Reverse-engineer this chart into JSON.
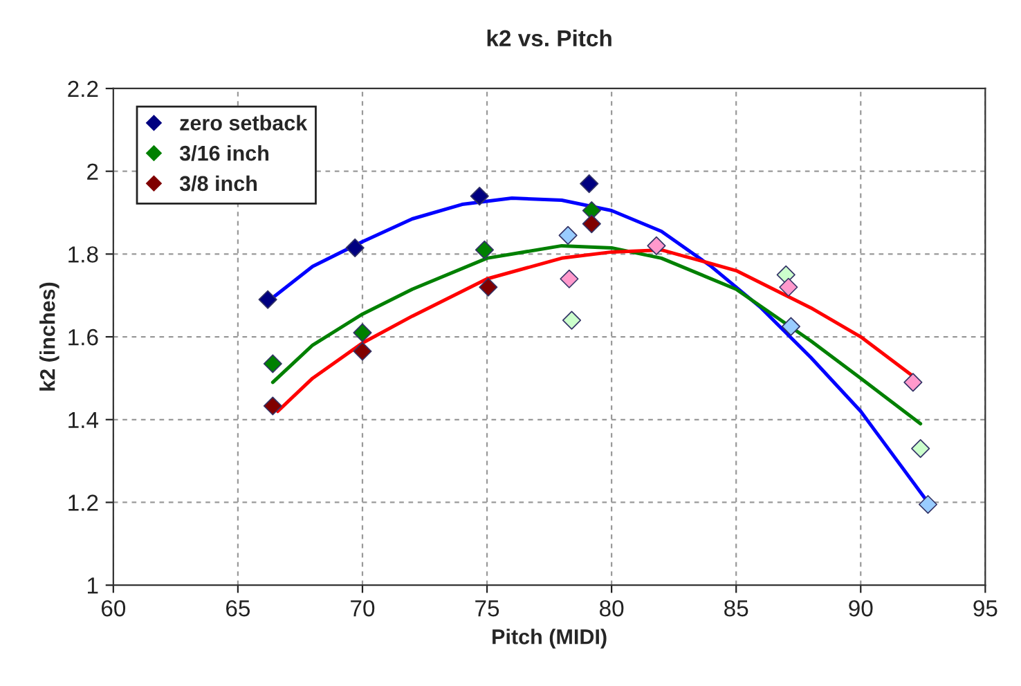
{
  "chart_data": {
    "type": "scatter",
    "title": "k2 vs. Pitch",
    "xlabel": "Pitch (MIDI)",
    "ylabel": "k2 (inches)",
    "xlim": [
      60,
      95
    ],
    "xticks": [
      60,
      65,
      70,
      75,
      80,
      85,
      90,
      95
    ],
    "ylim": [
      1,
      2.2
    ],
    "yticks": [
      1,
      1.2,
      1.4,
      1.6,
      1.8,
      2,
      2.2
    ],
    "grid": true,
    "legend": "top left",
    "marker": "diamond",
    "series": [
      {
        "name": "zero setback",
        "color": "#000080",
        "x": [
          66.2,
          69.7,
          74.7,
          79.1,
          78.25,
          87.2,
          92.7
        ],
        "values": [
          1.69,
          1.815,
          1.94,
          1.97,
          1.845,
          1.625,
          1.195
        ],
        "colors": [
          "#000080",
          "#000080",
          "#000080",
          "#000080",
          "#99ccff",
          "#99ccff",
          "#99ccff"
        ]
      },
      {
        "name": "3/16 inch",
        "color": "#008000",
        "x": [
          66.4,
          70.0,
          74.9,
          79.2,
          78.4,
          87.0,
          92.4
        ],
        "values": [
          1.535,
          1.61,
          1.81,
          1.905,
          1.64,
          1.75,
          1.33
        ],
        "colors": [
          "#008000",
          "#008000",
          "#008000",
          "#008000",
          "#ccffcc",
          "#ccffcc",
          "#ccffcc"
        ]
      },
      {
        "name": "3/8 inch",
        "color": "#800000",
        "x": [
          66.4,
          70.0,
          75.05,
          79.2,
          78.3,
          81.8,
          87.1,
          92.1
        ],
        "values": [
          1.433,
          1.565,
          1.72,
          1.873,
          1.74,
          1.82,
          1.72,
          1.49
        ],
        "colors": [
          "#800000",
          "#800000",
          "#800000",
          "#800000",
          "#ff99cc",
          "#ff99cc",
          "#ff99cc",
          "#ff99cc"
        ]
      },
      {
        "type": "line",
        "color": "#0000ff",
        "marker": "none",
        "x": [
          66.3,
          68,
          70,
          72,
          74,
          76,
          78,
          80,
          82,
          84,
          86,
          88,
          90,
          92.7
        ],
        "values": [
          1.69,
          1.77,
          1.83,
          1.885,
          1.92,
          1.935,
          1.93,
          1.905,
          1.855,
          1.77,
          1.67,
          1.55,
          1.42,
          1.2
        ]
      },
      {
        "type": "line",
        "color": "#008000",
        "marker": "none",
        "x": [
          66.4,
          68,
          70,
          72,
          75,
          78,
          80,
          82,
          85,
          88,
          90,
          92.4
        ],
        "values": [
          1.49,
          1.58,
          1.655,
          1.715,
          1.79,
          1.82,
          1.815,
          1.79,
          1.715,
          1.59,
          1.5,
          1.39
        ]
      },
      {
        "type": "line",
        "color": "#ff0000",
        "marker": "none",
        "x": [
          66.6,
          68,
          70,
          72,
          75,
          78,
          80,
          82,
          85,
          88,
          90,
          92.1
        ],
        "values": [
          1.42,
          1.5,
          1.585,
          1.65,
          1.74,
          1.79,
          1.805,
          1.81,
          1.76,
          1.67,
          1.6,
          1.505
        ]
      }
    ]
  }
}
